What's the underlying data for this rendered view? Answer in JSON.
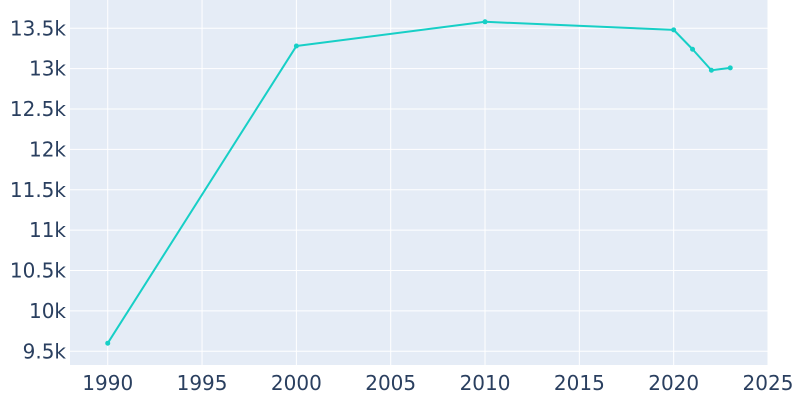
{
  "chart_data": {
    "type": "line",
    "title": "",
    "xlabel": "",
    "ylabel": "",
    "xlim": [
      1988,
      2025
    ],
    "ylim": [
      9330,
      13850
    ],
    "x_ticks": [
      1990,
      1995,
      2000,
      2005,
      2010,
      2015,
      2020,
      2025
    ],
    "x_tick_labels": [
      "1990",
      "1995",
      "2000",
      "2005",
      "2010",
      "2015",
      "2020",
      "2025"
    ],
    "y_ticks": [
      9500,
      10000,
      10500,
      11000,
      11500,
      12000,
      12500,
      13000,
      13500
    ],
    "y_tick_labels": [
      "9.5k",
      "10k",
      "10.5k",
      "11k",
      "11.5k",
      "12k",
      "12.5k",
      "13k",
      "13.5k"
    ],
    "grid": true,
    "legend": "none",
    "colors": {
      "plot_bg": "#e5ecf6",
      "grid": "#ffffff",
      "line": "#17cfc6",
      "text": "#2a3f5f"
    },
    "series": [
      {
        "x": [
          1990,
          2000,
          2010,
          2020,
          2021,
          2022,
          2023
        ],
        "y": [
          9600,
          13280,
          13580,
          13480,
          13240,
          12980,
          13010
        ]
      }
    ]
  }
}
